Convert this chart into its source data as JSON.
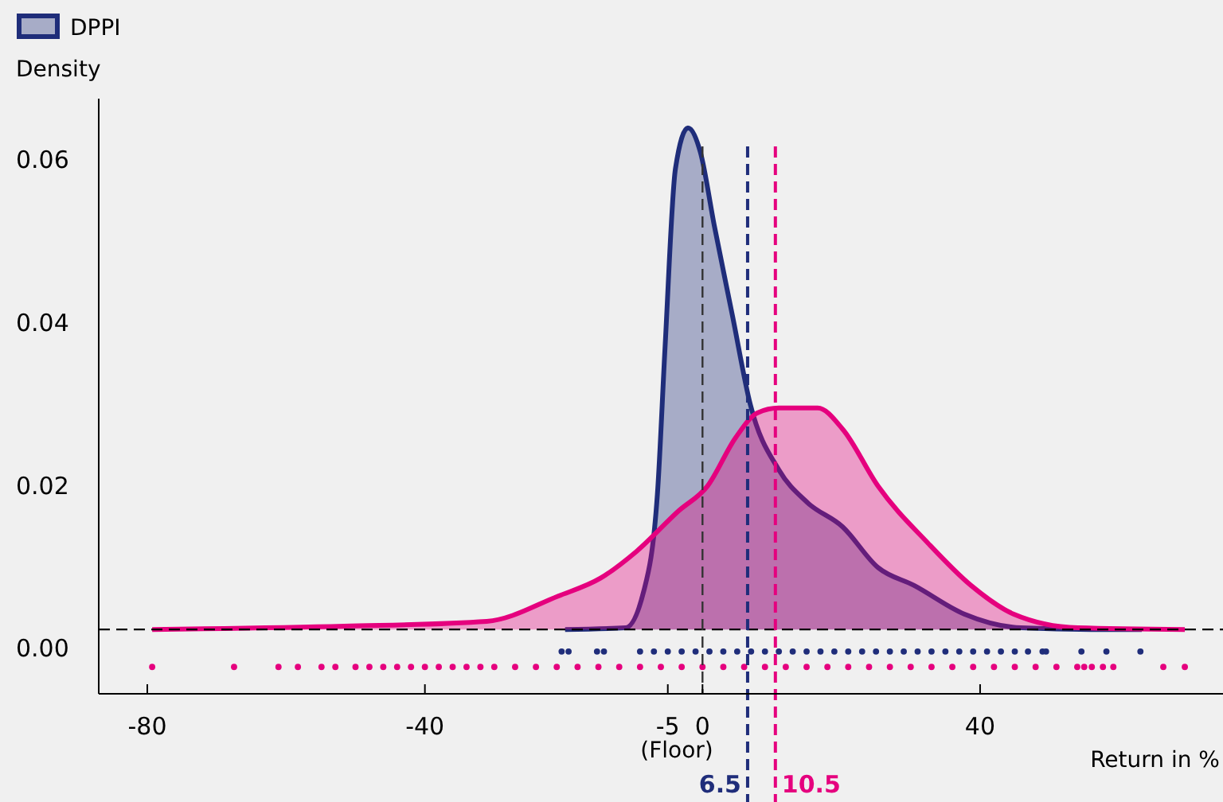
{
  "chart_data": {
    "type": "area",
    "ylabel": "Density",
    "xlabel": "Return in %",
    "xlim": [
      -87,
      75
    ],
    "ylim": [
      -0.0055,
      0.0676
    ],
    "xticks": [
      -80,
      -40,
      -5,
      0,
      40
    ],
    "yticks": [
      {
        "value": 0,
        "label": "0.00"
      },
      {
        "value": 0.02,
        "label": "0.02"
      },
      {
        "value": 0.04,
        "label": "0.04"
      },
      {
        "value": 0.06,
        "label": "0.06"
      }
    ],
    "legend": "top left",
    "grid": false,
    "series": [
      {
        "name": "DPPI",
        "color": "#1f2d7a",
        "x": [
          -19.8,
          -11.1,
          -8.5,
          -6.5,
          -5.4,
          -3.9,
          -2.1,
          -0.3,
          1.7,
          4.3,
          6.9,
          11,
          15.1,
          20.2,
          25.3,
          30.5,
          37.7,
          45.9,
          56.1,
          63.3
        ],
        "values": [
          0.0024,
          0.0026,
          0.007,
          0.019,
          0.037,
          0.059,
          0.064,
          0.061,
          0.052,
          0.041,
          0.03,
          0.022,
          0.018,
          0.015,
          0.01,
          0.0078,
          0.0043,
          0.0026,
          0.0024,
          0.0024
        ]
      },
      {
        "color": "#e5007e",
        "x": [
          -79.3,
          -51.6,
          -31.1,
          -20.8,
          -14.7,
          -9.5,
          -3.4,
          0.7,
          4.8,
          7.9,
          11,
          16.6,
          20.2,
          25.3,
          32.5,
          38.7,
          44.8,
          54.1,
          69.5
        ],
        "values": [
          0.0024,
          0.0028,
          0.0034,
          0.0065,
          0.0087,
          0.012,
          0.017,
          0.02,
          0.026,
          0.029,
          0.0296,
          0.0296,
          0.027,
          0.02,
          0.013,
          0.0078,
          0.0043,
          0.0026,
          0.0024
        ]
      },
      {
        "type": "scatter",
        "marker": "circle",
        "color": "#1f2d7a",
        "x": [
          -20.3,
          -19.3,
          -15.2,
          -14.2,
          -9,
          -7,
          -5,
          -3,
          -1,
          1,
          3,
          5,
          7,
          9,
          11,
          13,
          15,
          17,
          19,
          21,
          23,
          25,
          27,
          29,
          31,
          33,
          35,
          37,
          39,
          41,
          43,
          45,
          46.9,
          49,
          49.5,
          54.6,
          58.2,
          63.1
        ],
        "values": [
          -0.0003,
          -0.0003,
          -0.0003,
          -0.0003,
          -0.0003,
          -0.0003,
          -0.0003,
          -0.0003,
          -0.0003,
          -0.0003,
          -0.0003,
          -0.0003,
          -0.0003,
          -0.0003,
          -0.0003,
          -0.0003,
          -0.0003,
          -0.0003,
          -0.0003,
          -0.0003,
          -0.0003,
          -0.0003,
          -0.0003,
          -0.0003,
          -0.0003,
          -0.0003,
          -0.0003,
          -0.0003,
          -0.0003,
          -0.0003,
          -0.0003,
          -0.0003,
          -0.0003,
          -0.0003,
          -0.0003,
          -0.0003,
          -0.0003,
          -0.0003
        ]
      },
      {
        "type": "scatter",
        "marker": "circle",
        "color": "#e5007e",
        "x": [
          -79.3,
          -67.5,
          -61.1,
          -58.3,
          -54.9,
          -52.9,
          -50,
          -48,
          -46,
          -44,
          -42,
          -40,
          -38,
          -36,
          -34,
          -32,
          -30,
          -27,
          -24,
          -21,
          -18,
          -15,
          -12,
          -9,
          -6,
          -3,
          0,
          3,
          6,
          9,
          12,
          15,
          18,
          21,
          24,
          27,
          30,
          33,
          36,
          39,
          42,
          45,
          48,
          51,
          54,
          55,
          56.1,
          57.7,
          59.2,
          66.4,
          69.5
        ],
        "values": [
          -0.0022,
          -0.0022,
          -0.0022,
          -0.0022,
          -0.0022,
          -0.0022,
          -0.0022,
          -0.0022,
          -0.0022,
          -0.0022,
          -0.0022,
          -0.0022,
          -0.0022,
          -0.0022,
          -0.0022,
          -0.0022,
          -0.0022,
          -0.0022,
          -0.0022,
          -0.0022,
          -0.0022,
          -0.0022,
          -0.0022,
          -0.0022,
          -0.0022,
          -0.0022,
          -0.0022,
          -0.0022,
          -0.0022,
          -0.0022,
          -0.0022,
          -0.0022,
          -0.0022,
          -0.0022,
          -0.0022,
          -0.0022,
          -0.0022,
          -0.0022,
          -0.0022,
          -0.0022,
          -0.0022,
          -0.0022,
          -0.0022,
          -0.0022,
          -0.0022,
          -0.0022,
          -0.0022,
          -0.0022,
          -0.0022,
          -0.0022,
          -0.0022
        ]
      }
    ],
    "ref_lines": [
      {
        "axis": "y",
        "value": 0.0024,
        "color": "#000000",
        "line_style": "dashed"
      },
      {
        "axis": "x",
        "value": 0,
        "color": "#333333",
        "line_style": "dashed"
      },
      {
        "axis": "x",
        "value": 6.5,
        "label": "6.5",
        "color": "#1f2d7a",
        "line_style": "dashed"
      },
      {
        "axis": "x",
        "value": 10.5,
        "label": "10.5",
        "color": "#e5007e",
        "line_style": "dashed"
      }
    ],
    "annotations": [
      "(Floor)"
    ]
  }
}
